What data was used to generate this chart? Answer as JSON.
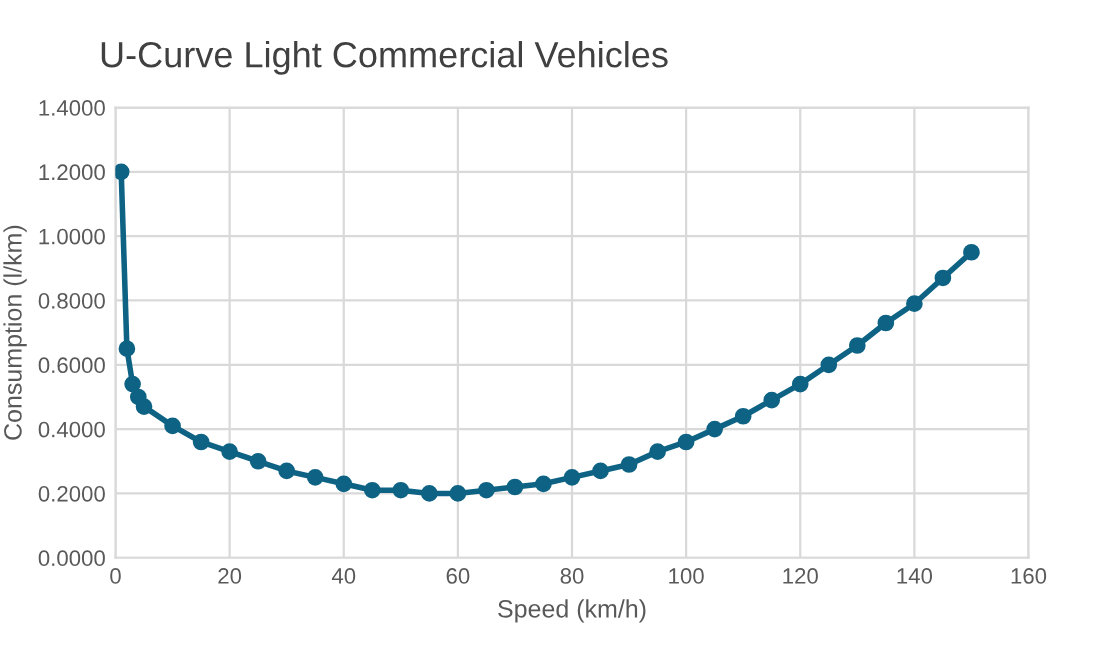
{
  "chart_data": {
    "type": "line",
    "title": "U-Curve Light Commercial Vehicles",
    "xlabel": "Speed (km/h)",
    "ylabel": "Consumption (l/km)",
    "series": [
      {
        "color": "#0e6384",
        "x": [
          1,
          2,
          3,
          4,
          5,
          10,
          15,
          20,
          25,
          30,
          35,
          40,
          45,
          50,
          55,
          60,
          65,
          70,
          75,
          80,
          85,
          90,
          95,
          100,
          105,
          110,
          115,
          120,
          125,
          130,
          135,
          140,
          145,
          150
        ],
        "values": [
          1.2,
          0.65,
          0.54,
          0.5,
          0.47,
          0.41,
          0.36,
          0.33,
          0.3,
          0.27,
          0.25,
          0.23,
          0.21,
          0.21,
          0.2,
          0.2,
          0.21,
          0.22,
          0.23,
          0.25,
          0.27,
          0.29,
          0.33,
          0.36,
          0.4,
          0.44,
          0.49,
          0.54,
          0.6,
          0.66,
          0.73,
          0.79,
          0.87,
          0.95
        ]
      }
    ],
    "xlim": [
      0,
      160
    ],
    "xticks": [
      0,
      20,
      40,
      60,
      80,
      100,
      120,
      140,
      160
    ],
    "ylim": [
      0,
      1.4
    ],
    "yticks": [
      {
        "value": 0,
        "label": "0.0000"
      },
      {
        "value": 0.2,
        "label": "0.2000"
      },
      {
        "value": 0.4,
        "label": "0.4000"
      },
      {
        "value": 0.6,
        "label": "0.6000"
      },
      {
        "value": 0.8,
        "label": "0.8000"
      },
      {
        "value": 1.0,
        "label": "1.0000"
      },
      {
        "value": 1.2,
        "label": "1.2000"
      },
      {
        "value": 1.4,
        "label": "1.4000"
      }
    ],
    "grid": true,
    "marker": "circle",
    "line_style": "solid"
  }
}
